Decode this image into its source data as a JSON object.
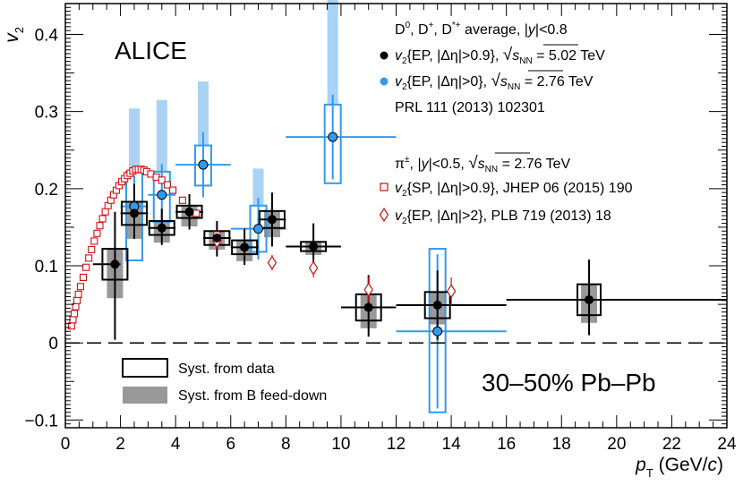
{
  "chart_data": {
    "type": "scatter",
    "title": "ALICE",
    "system_label": "30–50% Pb–Pb",
    "xlabel": "p_T (GeV/c)",
    "ylabel": "v_2",
    "xlim": [
      0,
      24
    ],
    "ylim": [
      -0.11,
      0.44
    ],
    "x_ticks": [
      0,
      2,
      4,
      6,
      8,
      10,
      12,
      14,
      16,
      18,
      20,
      22,
      24
    ],
    "x_tick_labels": [
      "0",
      "2",
      "4",
      "6",
      "8",
      "10",
      "12",
      "14",
      "16",
      "18",
      "20",
      "22",
      "24"
    ],
    "y_ticks": [
      -0.1,
      0,
      0.1,
      0.2,
      0.3,
      0.4
    ],
    "y_tick_labels": [
      "−0.1",
      "0",
      "0.1",
      "0.2",
      "0.3",
      "0.4"
    ],
    "legend": {
      "dmeson_header": "D0, D+, D*+ average, |y|<0.8",
      "ep_502": "v2{EP, |Δη|>0.9}, √sNN = 5.02 TeV",
      "ep_276": "v2{EP, |Δη|>0}, √sNN = 2.76 TeV",
      "prl_ref": "PRL 111 (2013) 102301",
      "pion_header": "π±, |y|<0.5, √sNN = 2.76 TeV",
      "sp_pion": "v2{SP, |Δη|>0.9}, JHEP 06 (2015) 190",
      "ep_pion": "v2{EP, |Δη|>2}, PLB 719 (2013) 18",
      "syst_data": "Syst. from data",
      "syst_bfeed": "Syst. from B feed-down"
    },
    "series": [
      {
        "name": "D meson v2{EP,|Δη|>0.9} 5.02 TeV",
        "color": "#000000",
        "points": [
          {
            "x": 1.8,
            "y": 0.102,
            "xlo": 1.0,
            "xhi": 2.0,
            "elo": 0.098,
            "ehi": 0.068,
            "slo": 0.02,
            "shi": 0.02,
            "blo": 0.024,
            "bhi": 0.0
          },
          {
            "x": 2.5,
            "y": 0.168,
            "xlo": 2.0,
            "xhi": 3.0,
            "elo": 0.033,
            "ehi": 0.038,
            "slo": 0.015,
            "shi": 0.015,
            "blo": 0.018,
            "bhi": 0.0
          },
          {
            "x": 3.5,
            "y": 0.149,
            "xlo": 3.0,
            "xhi": 4.0,
            "elo": 0.022,
            "ehi": 0.025,
            "slo": 0.009,
            "shi": 0.009,
            "blo": 0.01,
            "bhi": 0.0
          },
          {
            "x": 4.5,
            "y": 0.17,
            "xlo": 4.0,
            "xhi": 5.0,
            "elo": 0.023,
            "ehi": 0.023,
            "slo": 0.008,
            "shi": 0.008,
            "blo": 0.011,
            "bhi": 0.0
          },
          {
            "x": 5.5,
            "y": 0.136,
            "xlo": 5.0,
            "xhi": 6.0,
            "elo": 0.024,
            "ehi": 0.022,
            "slo": 0.009,
            "shi": 0.009,
            "blo": 0.006,
            "bhi": 0.0
          },
          {
            "x": 6.5,
            "y": 0.124,
            "xlo": 6.0,
            "xhi": 7.0,
            "elo": 0.023,
            "ehi": 0.024,
            "slo": 0.009,
            "shi": 0.009,
            "blo": 0.009,
            "bhi": 0.0
          },
          {
            "x": 7.5,
            "y": 0.16,
            "xlo": 7.0,
            "xhi": 8.0,
            "elo": 0.035,
            "ehi": 0.035,
            "slo": 0.011,
            "shi": 0.011,
            "blo": 0.012,
            "bhi": 0.0
          },
          {
            "x": 9.0,
            "y": 0.125,
            "xlo": 8.0,
            "xhi": 10.0,
            "elo": 0.025,
            "ehi": 0.03,
            "slo": 0.006,
            "shi": 0.006,
            "blo": 0.005,
            "bhi": 0.0
          },
          {
            "x": 11.0,
            "y": 0.046,
            "xlo": 10.0,
            "xhi": 12.0,
            "elo": 0.038,
            "ehi": 0.042,
            "slo": 0.017,
            "shi": 0.017,
            "blo": 0.01,
            "bhi": 0.0
          },
          {
            "x": 13.5,
            "y": 0.049,
            "xlo": 12.0,
            "xhi": 16.0,
            "elo": 0.045,
            "ehi": 0.045,
            "slo": 0.017,
            "shi": 0.017,
            "blo": 0.008,
            "bhi": 0.0
          },
          {
            "x": 19.0,
            "y": 0.056,
            "xlo": 16.0,
            "xhi": 24.0,
            "elo": 0.046,
            "ehi": 0.052,
            "slo": 0.02,
            "shi": 0.02,
            "blo": 0.01,
            "bhi": 0.0
          }
        ]
      },
      {
        "name": "D meson v2{EP,|Δη|>0} 2.76 TeV",
        "color": "#3399ee",
        "band_color": "#a9d2f5",
        "points": [
          {
            "x": 2.5,
            "y": 0.177,
            "xlo": 2.0,
            "xhi": 3.0,
            "elo": 0.04,
            "ehi": 0.04,
            "slo": 0.07,
            "shi": 0.045,
            "blo": 0.0,
            "bhi": 0.082
          },
          {
            "x": 3.5,
            "y": 0.192,
            "xlo": 3.0,
            "xhi": 4.0,
            "elo": 0.04,
            "ehi": 0.04,
            "slo": 0.035,
            "shi": 0.03,
            "blo": 0.0,
            "bhi": 0.093
          },
          {
            "x": 5.0,
            "y": 0.231,
            "xlo": 4.0,
            "xhi": 6.0,
            "elo": 0.042,
            "ehi": 0.042,
            "slo": 0.027,
            "shi": 0.025,
            "blo": 0.0,
            "bhi": 0.083
          },
          {
            "x": 7.0,
            "y": 0.148,
            "xlo": 6.0,
            "xhi": 8.0,
            "elo": 0.04,
            "ehi": 0.04,
            "slo": 0.03,
            "shi": 0.03,
            "blo": 0.0,
            "bhi": 0.048
          },
          {
            "x": 9.7,
            "y": 0.267,
            "xlo": 8.0,
            "xhi": 12.0,
            "elo": 0.055,
            "ehi": 0.055,
            "slo": 0.06,
            "shi": 0.042,
            "blo": 0.0,
            "bhi": 0.138
          },
          {
            "x": 13.5,
            "y": 0.015,
            "xlo": 12.0,
            "xhi": 16.0,
            "elo": 0.1,
            "ehi": 0.1,
            "slo": 0.105,
            "shi": 0.107,
            "blo": 0.0,
            "bhi": 0.0
          }
        ]
      },
      {
        "name": "π± v2{SP,|Δη|>0.9}",
        "color": "#cc1111",
        "marker": "open-square",
        "x": [
          0.225,
          0.275,
          0.325,
          0.375,
          0.425,
          0.475,
          0.55,
          0.65,
          0.75,
          0.85,
          0.95,
          1.05,
          1.15,
          1.25,
          1.35,
          1.45,
          1.55,
          1.65,
          1.75,
          1.85,
          1.95,
          2.05,
          2.15,
          2.25,
          2.35,
          2.45,
          2.55,
          2.65,
          2.75,
          2.85,
          2.95,
          3.1,
          3.3,
          3.5,
          3.7,
          3.9,
          4.25,
          4.75,
          5.5
        ],
        "y": [
          0.022,
          0.03,
          0.038,
          0.047,
          0.055,
          0.063,
          0.073,
          0.085,
          0.098,
          0.11,
          0.121,
          0.132,
          0.142,
          0.152,
          0.161,
          0.17,
          0.178,
          0.185,
          0.192,
          0.198,
          0.204,
          0.209,
          0.213,
          0.217,
          0.22,
          0.223,
          0.225,
          0.225,
          0.225,
          0.224,
          0.222,
          0.219,
          0.215,
          0.211,
          0.205,
          0.198,
          0.185,
          0.168,
          0.14
        ]
      },
      {
        "name": "π± v2{EP,|Δη|>2}",
        "color": "#cc1111",
        "marker": "open-diamond",
        "points": [
          {
            "x": 5.5,
            "y": 0.132,
            "ey": 0.01
          },
          {
            "x": 7.5,
            "y": 0.104,
            "ey": 0.01
          },
          {
            "x": 9.0,
            "y": 0.097,
            "ey": 0.012
          },
          {
            "x": 11.0,
            "y": 0.069,
            "ey": 0.016
          },
          {
            "x": 14.0,
            "y": 0.067,
            "ey": 0.018
          }
        ]
      }
    ]
  }
}
